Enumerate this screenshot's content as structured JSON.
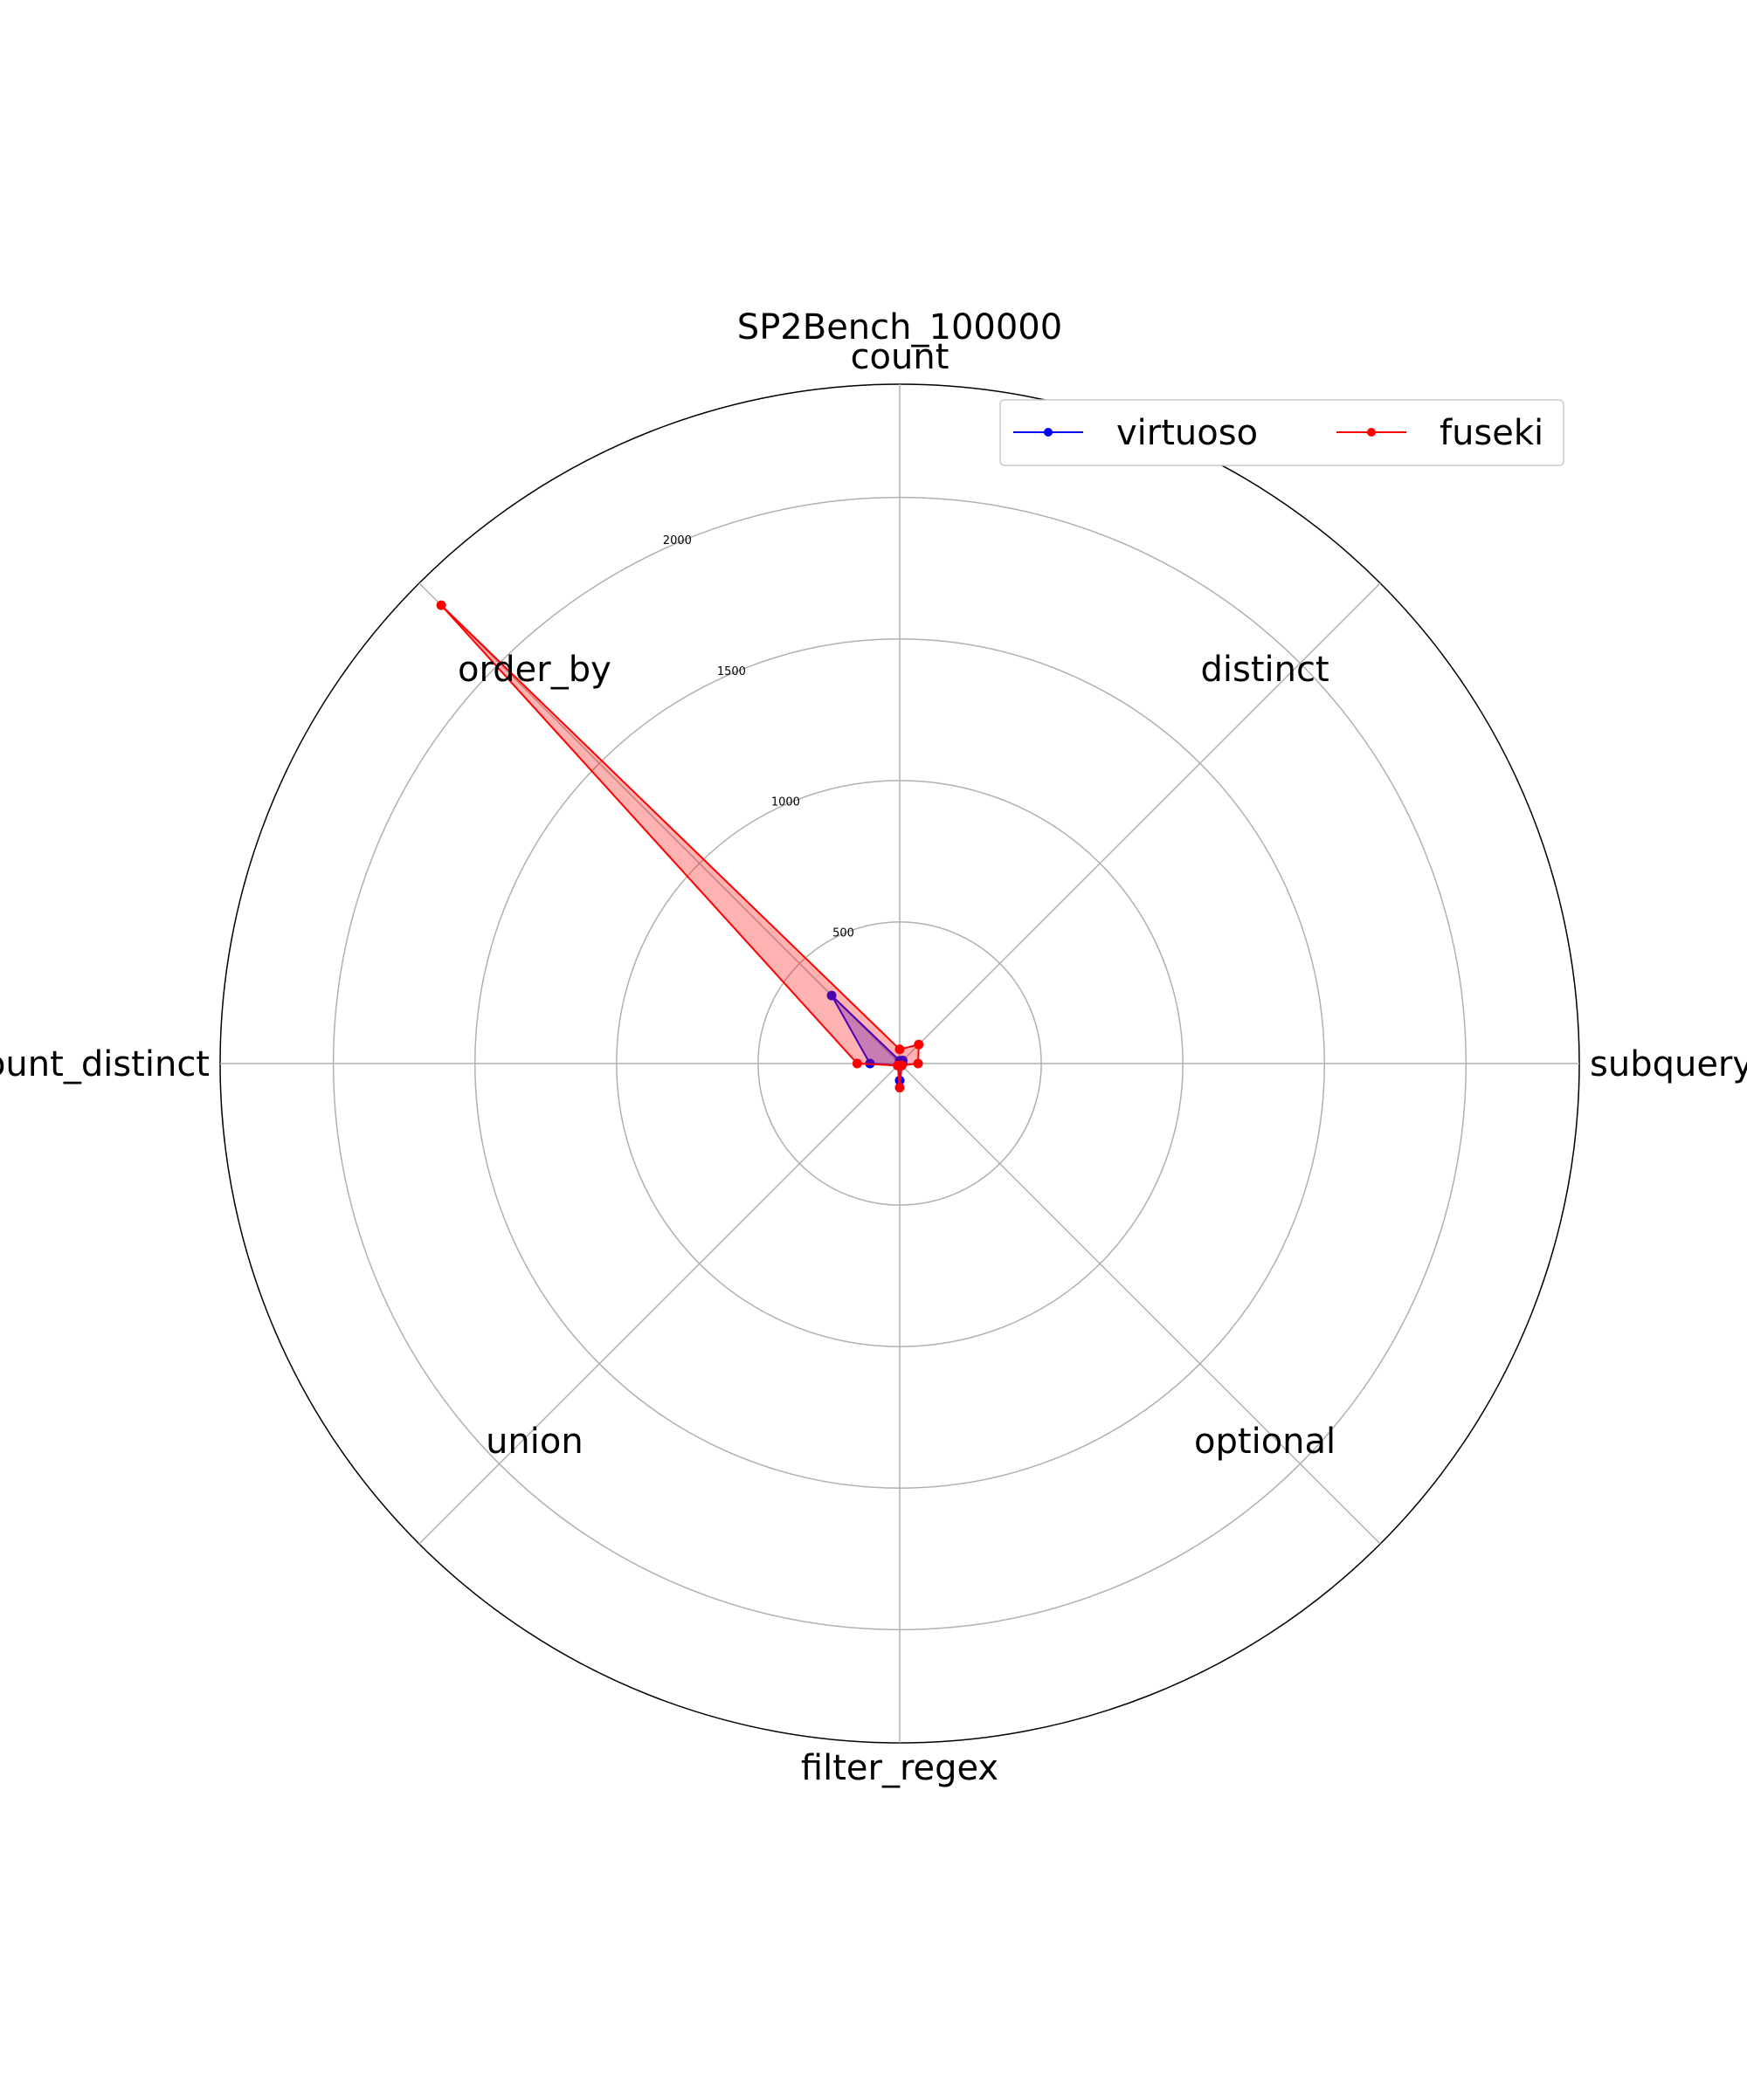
{
  "chart_data": {
    "type": "radar",
    "title": "SP2Bench_100000",
    "axes": [
      "count",
      "distinct",
      "subquery",
      "optional",
      "filter_regex",
      "union",
      "group_by_having_count_distinct",
      "order_by"
    ],
    "r_ticks": [
      500,
      1000,
      1500,
      2000
    ],
    "r_max": 2400,
    "grid": true,
    "legend_position": "top-right",
    "legend_columns": 2,
    "series": [
      {
        "name": "virtuoso",
        "color": "#0000ff",
        "values": [
          10,
          15,
          10,
          10,
          60,
          10,
          105,
          340
        ]
      },
      {
        "name": "fuseki",
        "color": "#ff0000",
        "values": [
          50,
          95,
          65,
          10,
          85,
          10,
          150,
          2290
        ]
      }
    ]
  }
}
